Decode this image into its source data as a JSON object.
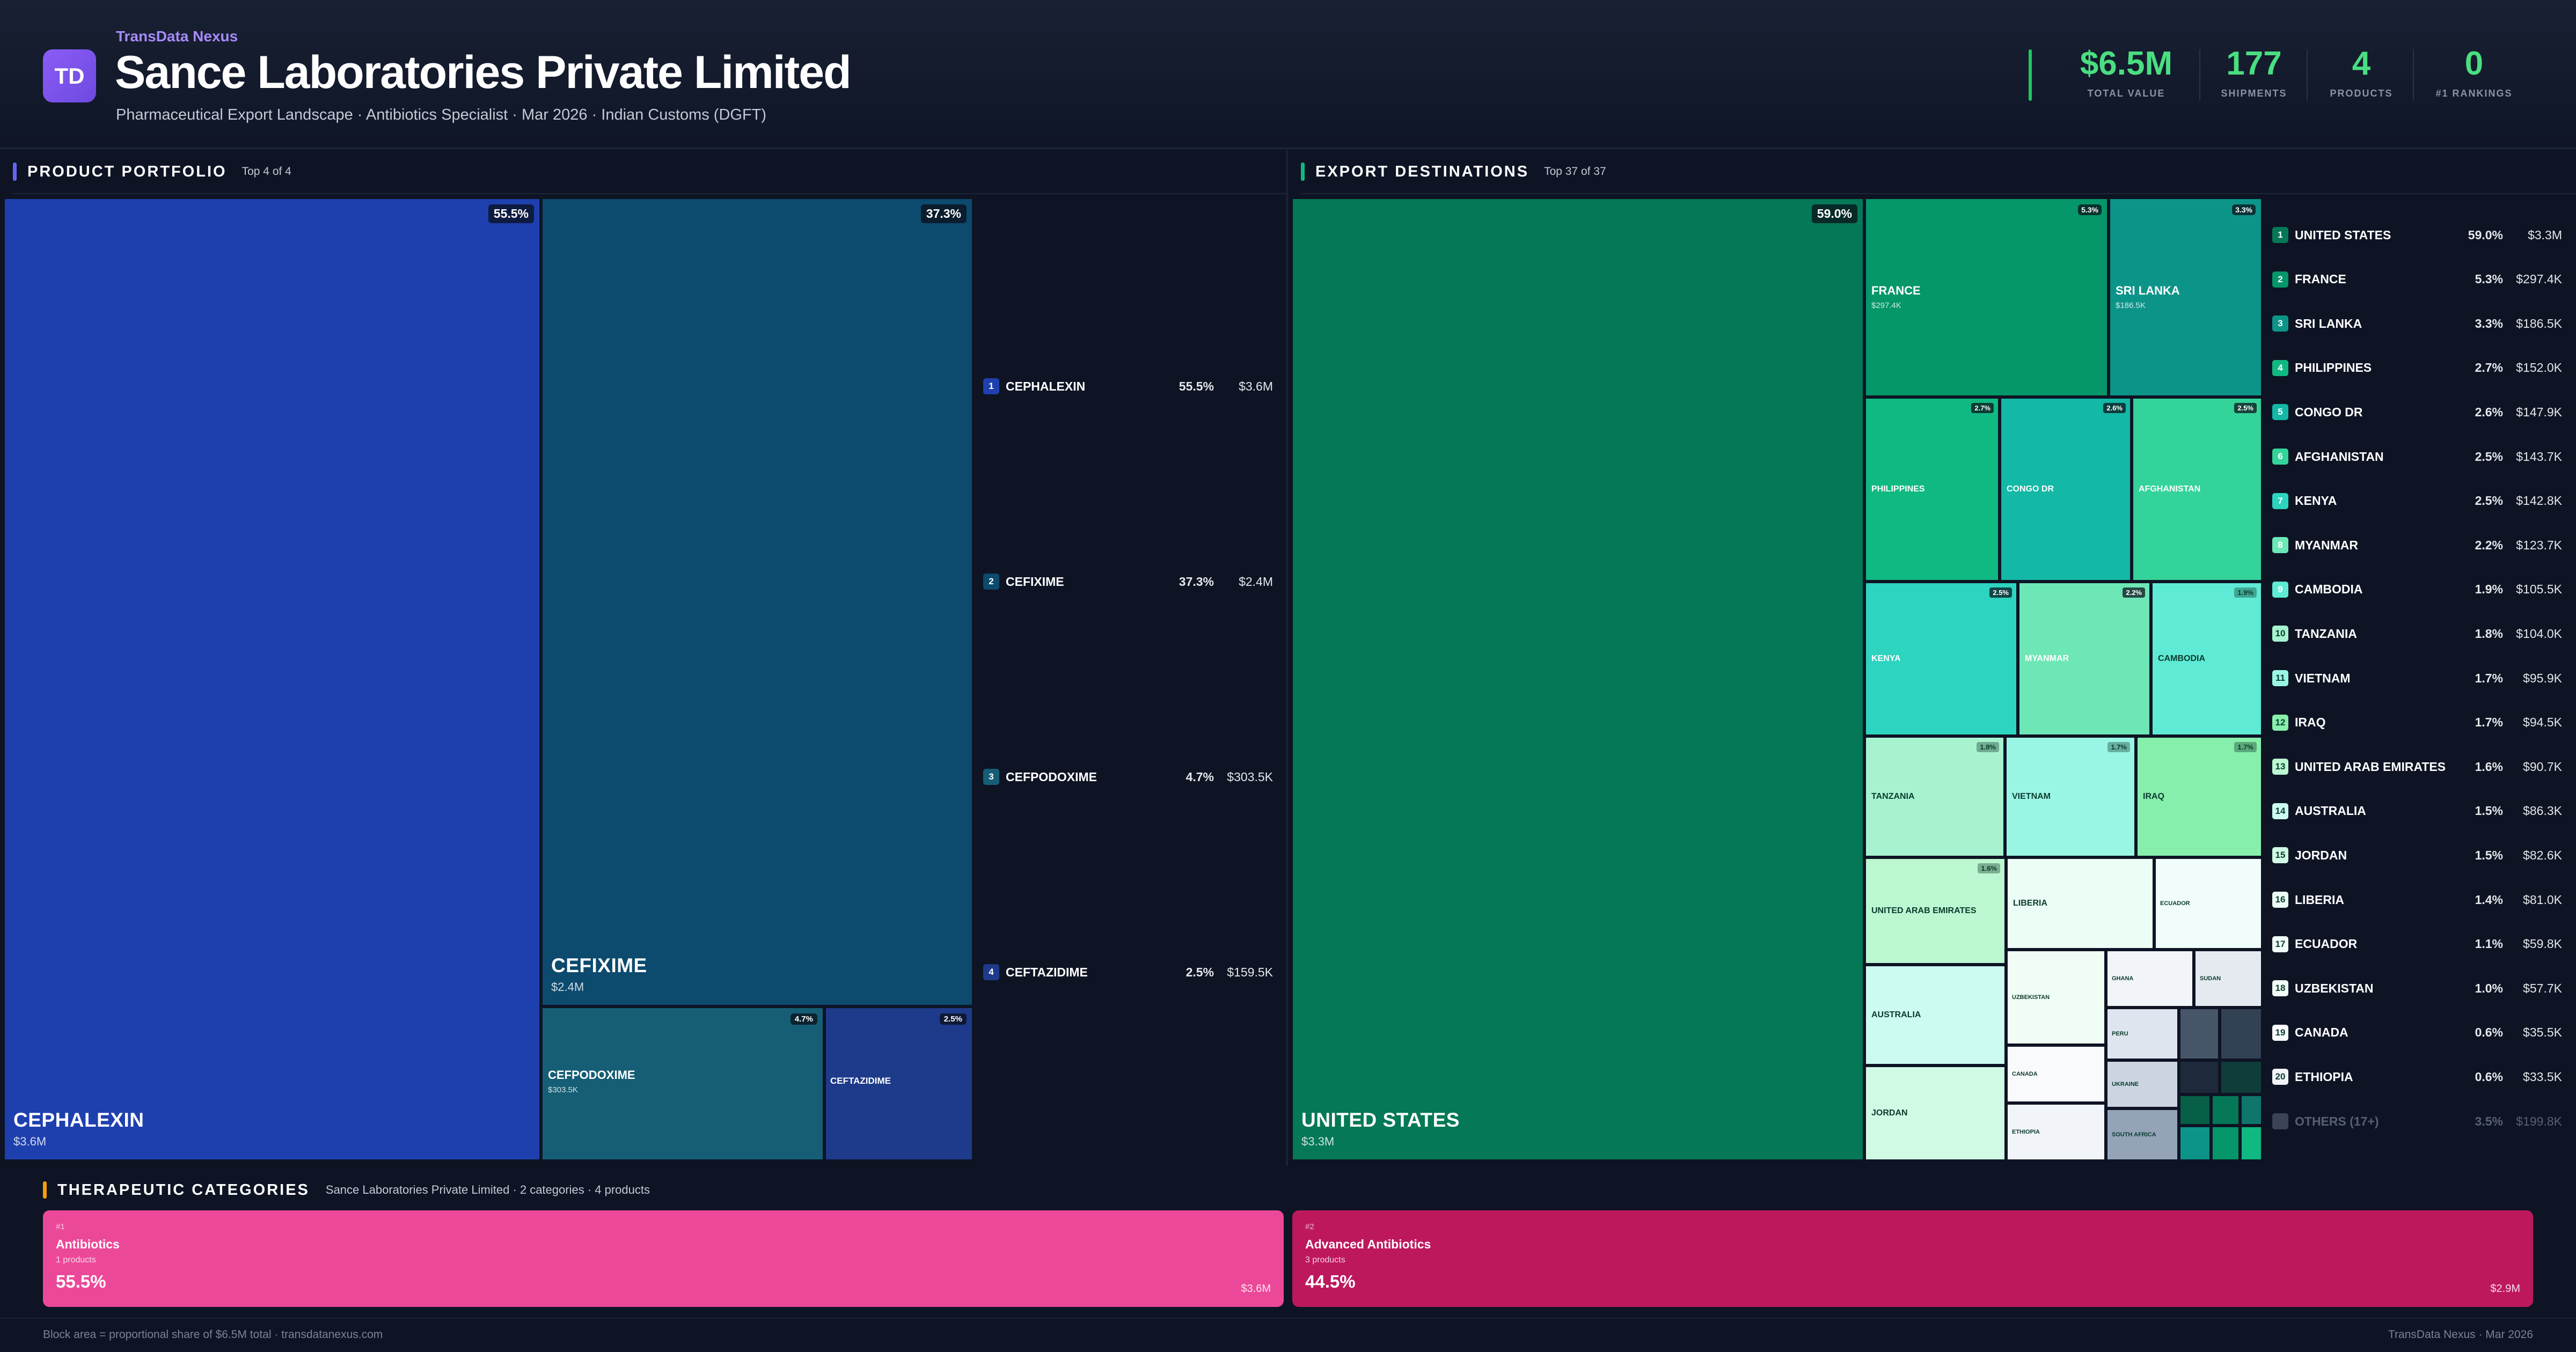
{
  "header": {
    "logo_text": "TD",
    "brand": "TransData Nexus",
    "company": "Sance Laboratories Private Limited",
    "subtitle": "Pharmaceutical Export Landscape · Antibiotics Specialist · Mar 2026 · Indian Customs (DGFT)",
    "kpis": [
      {
        "value": "$6.5M",
        "label": "TOTAL VALUE"
      },
      {
        "value": "177",
        "label": "SHIPMENTS"
      },
      {
        "value": "4",
        "label": "PRODUCTS"
      },
      {
        "value": "0",
        "label": "#1 RANKINGS"
      }
    ]
  },
  "products": {
    "title": "PRODUCT PORTFOLIO",
    "note": "Top 4 of 4",
    "accent": "#6366f1",
    "items": [
      {
        "rank": "1",
        "name": "CEPHALEXIN",
        "share": "55.5%",
        "value": "$3.6M",
        "color": "#1e40af"
      },
      {
        "rank": "2",
        "name": "CEFIXIME",
        "share": "37.3%",
        "value": "$2.4M",
        "color": "#0c4a6e"
      },
      {
        "rank": "3",
        "name": "CEFPODOXIME",
        "share": "4.7%",
        "value": "$303.5K",
        "color": "#155e75"
      },
      {
        "rank": "4",
        "name": "CEFTAZIDIME",
        "share": "2.5%",
        "value": "$159.5K",
        "color": "#1e3a8a"
      }
    ]
  },
  "destinations": {
    "title": "EXPORT DESTINATIONS",
    "note": "Top 37 of 37",
    "accent": "#10b981",
    "tiles": [
      {
        "name": "UNITED STATES",
        "share": "59.0%",
        "value": "$3.3M"
      },
      {
        "name": "FRANCE",
        "share": "5.3%",
        "value": "$297.4K"
      },
      {
        "name": "SRI LANKA",
        "share": "3.3%",
        "value": "$186.5K"
      },
      {
        "name": "PHILIPPINES",
        "share": "2.7%"
      },
      {
        "name": "CONGO DR",
        "share": "2.6%"
      },
      {
        "name": "AFGHANISTAN",
        "share": "2.5%"
      },
      {
        "name": "KENYA",
        "share": "2.5%"
      },
      {
        "name": "MYANMAR",
        "share": "2.2%"
      },
      {
        "name": "CAMBODIA",
        "share": "1.9%"
      },
      {
        "name": "TANZANIA",
        "share": "1.8%"
      },
      {
        "name": "VIETNAM",
        "share": "1.7%"
      },
      {
        "name": "IRAQ",
        "share": "1.7%"
      },
      {
        "name": "UNITED ARAB EMIRATES",
        "share": "1.6%"
      },
      {
        "name": "LIBERIA"
      },
      {
        "name": "ECUADOR"
      },
      {
        "name": "AUSTRALIA"
      },
      {
        "name": "UZBEKISTAN"
      },
      {
        "name": "GHANA"
      },
      {
        "name": "SUDAN"
      },
      {
        "name": "JORDAN"
      },
      {
        "name": "CANADA"
      },
      {
        "name": "PERU"
      },
      {
        "name": "UKRAINE"
      },
      {
        "name": "ETHIOPIA"
      },
      {
        "name": "SOUTH AFRICA"
      }
    ],
    "ranking": [
      {
        "rank": "1",
        "name": "UNITED STATES",
        "share": "59.0%",
        "value": "$3.3M",
        "color": "#047857"
      },
      {
        "rank": "2",
        "name": "FRANCE",
        "share": "5.3%",
        "value": "$297.4K",
        "color": "#059669"
      },
      {
        "rank": "3",
        "name": "SRI LANKA",
        "share": "3.3%",
        "value": "$186.5K",
        "color": "#0d9488"
      },
      {
        "rank": "4",
        "name": "PHILIPPINES",
        "share": "2.7%",
        "value": "$152.0K",
        "color": "#10b981"
      },
      {
        "rank": "5",
        "name": "CONGO DR",
        "share": "2.6%",
        "value": "$147.9K",
        "color": "#14b8a6"
      },
      {
        "rank": "6",
        "name": "AFGHANISTAN",
        "share": "2.5%",
        "value": "$143.7K",
        "color": "#34d399"
      },
      {
        "rank": "7",
        "name": "KENYA",
        "share": "2.5%",
        "value": "$142.8K",
        "color": "#2dd4bf"
      },
      {
        "rank": "8",
        "name": "MYANMAR",
        "share": "2.2%",
        "value": "$123.7K",
        "color": "#6ee7b7"
      },
      {
        "rank": "9",
        "name": "CAMBODIA",
        "share": "1.9%",
        "value": "$105.5K",
        "color": "#5eead4"
      },
      {
        "rank": "10",
        "name": "TANZANIA",
        "share": "1.8%",
        "value": "$104.0K",
        "color": "#a7f3d0"
      },
      {
        "rank": "11",
        "name": "VIETNAM",
        "share": "1.7%",
        "value": "$95.9K",
        "color": "#99f6e4"
      },
      {
        "rank": "12",
        "name": "IRAQ",
        "share": "1.7%",
        "value": "$94.5K",
        "color": "#86efac"
      },
      {
        "rank": "13",
        "name": "UNITED ARAB EMIRATES",
        "share": "1.6%",
        "value": "$90.7K",
        "color": "#bbf7d0"
      },
      {
        "rank": "14",
        "name": "AUSTRALIA",
        "share": "1.5%",
        "value": "$86.3K",
        "color": "#ccfbf1"
      },
      {
        "rank": "15",
        "name": "JORDAN",
        "share": "1.5%",
        "value": "$82.6K",
        "color": "#d1fae5"
      },
      {
        "rank": "16",
        "name": "LIBERIA",
        "share": "1.4%",
        "value": "$81.0K",
        "color": "#ecfdf5"
      },
      {
        "rank": "17",
        "name": "ECUADOR",
        "share": "1.1%",
        "value": "$59.8K",
        "color": "#f0fdfa"
      },
      {
        "rank": "18",
        "name": "UZBEKISTAN",
        "share": "1.0%",
        "value": "$57.7K",
        "color": "#f0fdf4"
      },
      {
        "rank": "19",
        "name": "CANADA",
        "share": "0.6%",
        "value": "$35.5K",
        "color": "#f8fafc"
      },
      {
        "rank": "20",
        "name": "ETHIOPIA",
        "share": "0.6%",
        "value": "$33.5K",
        "color": "#f1f5f9"
      },
      {
        "rank": "",
        "name": "OTHERS (17+)",
        "share": "3.5%",
        "value": "$199.8K",
        "color": "#3a4456"
      }
    ]
  },
  "therapeutic": {
    "title": "THERAPEUTIC CATEGORIES",
    "note": "Sance Laboratories Private Limited · 2 categories · 4 products",
    "cards": [
      {
        "rank": "#1",
        "name": "Antibiotics",
        "count": "1 products",
        "share": "55.5%",
        "value": "$3.6M",
        "color": "#ec4899"
      },
      {
        "rank": "#2",
        "name": "Advanced Antibiotics",
        "count": "3 products",
        "share": "44.5%",
        "value": "$2.9M",
        "color": "#be185d"
      }
    ]
  },
  "footer": {
    "left": "Block area = proportional share of $6.5M total · transdatanexus.com",
    "right": "TransData Nexus · Mar 2026"
  }
}
